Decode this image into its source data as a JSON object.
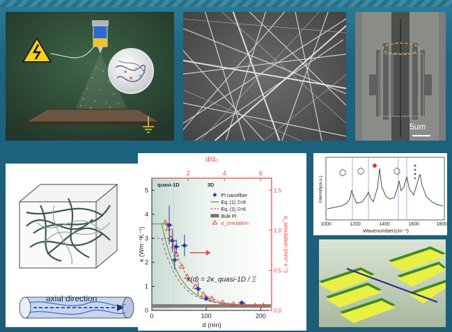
{
  "panels": {
    "electrospinning": {},
    "sem": {},
    "device": {
      "scale_bar_label": "5um"
    },
    "schematic": {
      "axial_label": "axial direction"
    },
    "raman": {
      "y_label": "Intensity(a.u.)",
      "x_label": "Wavenumber(cm⁻¹)",
      "x_ticks": [
        "1000",
        "1200",
        "1400",
        "1600",
        "1800"
      ]
    },
    "render3d": {}
  },
  "chart_data": {
    "type": "scatter",
    "title": "",
    "xlabel": "d (nm)",
    "ylabel": "κ (Wm⁻¹K⁻¹)",
    "ylabel2": "α_simulation (mm² s⁻¹)",
    "xlabel_top": "d/d₀",
    "xlim": [
      0,
      220
    ],
    "ylim": [
      0,
      5.5
    ],
    "ylim2": [
      0,
      1.65
    ],
    "xlim_top": [
      0,
      6.6
    ],
    "x_ticks": [
      0,
      100,
      200
    ],
    "y_ticks": [
      0,
      1,
      2,
      3,
      4,
      5
    ],
    "y2_ticks": [
      0.0,
      0.5,
      1.0,
      1.5
    ],
    "top_ticks": [
      2,
      4,
      6
    ],
    "x_tick_labels": [
      "0",
      "100",
      "200"
    ],
    "y_tick_labels": [
      "0",
      "1",
      "2",
      "3",
      "4",
      "5"
    ],
    "y2_tick_labels": [
      "0.0",
      "0.5",
      "1.0",
      "1.5"
    ],
    "top_tick_labels": [
      "2",
      "4",
      "6"
    ],
    "region_labels": [
      "quasi-1D",
      "3D"
    ],
    "legend_position": "top-right",
    "legend": [
      "PI nanofiber",
      "Eq. (1)  Ξ=8",
      "Eq. (1)  Ξ=6",
      "Bulk PI",
      "α_simulation"
    ],
    "formula": "κ(d) = 2κ_quasi-1D / Ξ",
    "series": [
      {
        "name": "PI nanofiber",
        "x": [
          32,
          38,
          42,
          45,
          60,
          85,
          100,
          165
        ],
        "y": [
          3.55,
          2.9,
          2.1,
          2.65,
          2.7,
          0.9,
          0.5,
          0.32
        ],
        "err": [
          0.8,
          0.5,
          0.4,
          0.3,
          0.45,
          0.25,
          0.12,
          0.05
        ],
        "color": "#2a3b9e"
      },
      {
        "name": "α_simulation",
        "x": [
          25,
          30,
          35,
          40,
          45,
          55,
          65,
          80,
          95,
          110,
          130,
          150,
          170,
          190,
          205
        ],
        "y2": [
          1.1,
          1.02,
          0.9,
          0.8,
          0.7,
          0.55,
          0.42,
          0.3,
          0.2,
          0.15,
          0.1,
          0.08,
          0.07,
          0.06,
          0.06
        ],
        "color": "#e8453c"
      }
    ],
    "bulk_value": 0.2,
    "bulk_color": "#7a6f6a",
    "fit8_color": "#5fae3a",
    "fit6_color": "#d94aa8"
  }
}
